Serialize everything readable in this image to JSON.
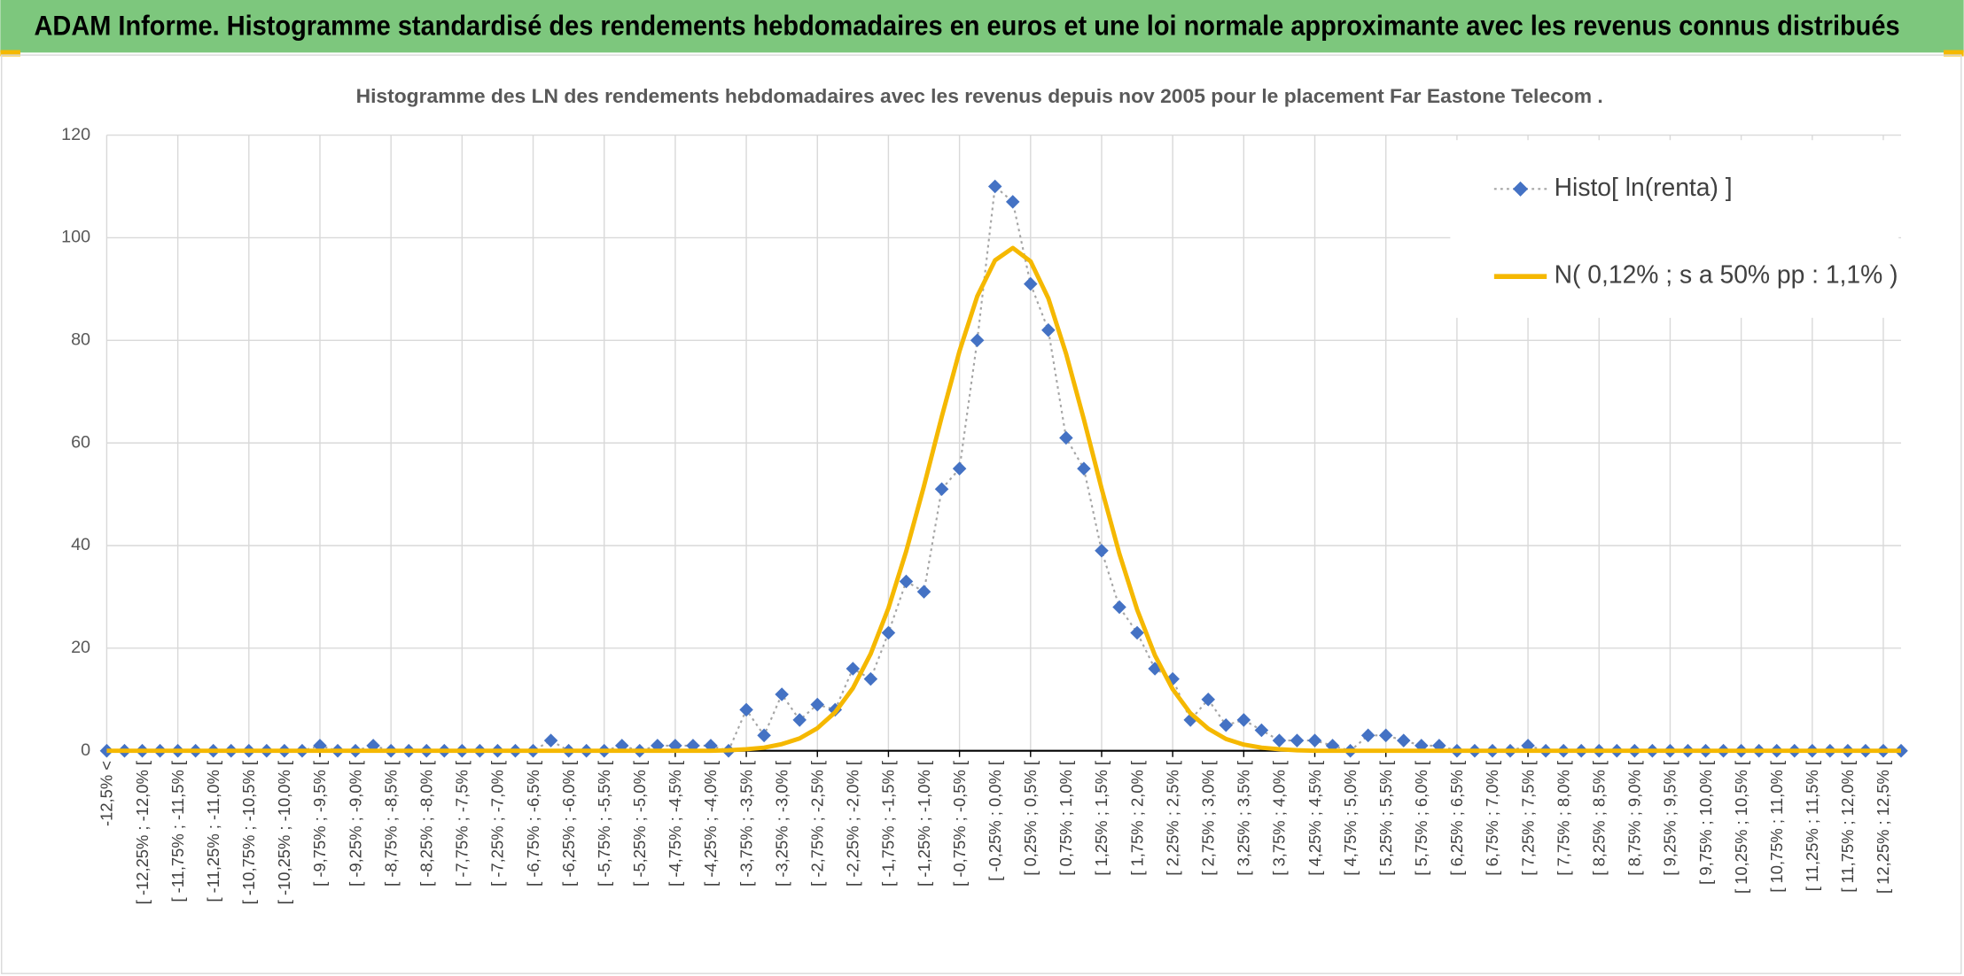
{
  "chart_data": {
    "type": "line",
    "title": "ADAM Informe. Histogramme standardisé des rendements hebdomadaires en euros et une loi normale approximante avec les revenus connus distribués",
    "subtitle": "Histogramme des LN des rendements hebdomadaires avec les revenus depuis nov 2005 pour le placement Far Eastone Telecom .",
    "categories": [
      "-12,5% <",
      null,
      "[ -12,25% ; -12,0% [",
      null,
      "[ -11,75% ; -11,5% [",
      null,
      "[ -11,25% ; -11,0% [",
      null,
      "[ -10,75% ; -10,5% [",
      null,
      "[ -10,25% ; -10,0% [",
      null,
      "[ -9,75% ; -9,5% [",
      null,
      "[ -9,25% ; -9,0% [",
      null,
      "[ -8,75% ; -8,5% [",
      null,
      "[ -8,25% ; -8,0% [",
      null,
      "[ -7,75% ; -7,5% [",
      null,
      "[ -7,25% ; -7,0% [",
      null,
      "[ -6,75% ; -6,5% [",
      null,
      "[ -6,25% ; -6,0% [",
      null,
      "[ -5,75% ; -5,5% [",
      null,
      "[ -5,25% ; -5,0% [",
      null,
      "[ -4,75% ; -4,5% [",
      null,
      "[ -4,25% ; -4,0% [",
      null,
      "[ -3,75% ; -3,5% [",
      null,
      "[ -3,25% ; -3,0% [",
      null,
      "[ -2,75% ; -2,5% [",
      null,
      "[ -2,25% ; -2,0% [",
      null,
      "[ -1,75% ; -1,5% [",
      null,
      "[ -1,25% ; -1,0% [",
      null,
      "[ -0,75% ; -0,5% [",
      null,
      "[ -0,25% ; 0,0% [",
      null,
      "[ 0,25% ; 0,5% [",
      null,
      "[ 0,75% ; 1,0% [",
      null,
      "[ 1,25% ; 1,5% [",
      null,
      "[ 1,75% ; 2,0% [",
      null,
      "[ 2,25% ; 2,5% [",
      null,
      "[ 2,75% ; 3,0% [",
      null,
      "[ 3,25% ; 3,5% [",
      null,
      "[ 3,75% ; 4,0% [",
      null,
      "[ 4,25% ; 4,5% [",
      null,
      "[ 4,75% ; 5,0% [",
      null,
      "[ 5,25% ; 5,5% [",
      null,
      "[ 5,75% ; 6,0% [",
      null,
      "[ 6,25% ; 6,5% [",
      null,
      "[ 6,75% ; 7,0% [",
      null,
      "[ 7,25% ; 7,5% [",
      null,
      "[ 7,75% ; 8,0% [",
      null,
      "[ 8,25% ; 8,5% [",
      null,
      "[ 8,75% ; 9,0% [",
      null,
      "[ 9,25% ; 9,5% [",
      null,
      "[ 9,75% ; 10,0% [",
      null,
      "[ 10,25% ; 10,5% [",
      null,
      "[ 10,75% ; 11,0% [",
      null,
      "[ 11,25% ; 11,5% [",
      null,
      "[ 11,75% ; 12,0% [",
      null,
      "[ 12,25% ; 12,5% [",
      null
    ],
    "series": [
      {
        "name": "Histo[ ln(renta) ]",
        "color": "#4472c4",
        "line_color": "#a5a5a5",
        "marker": "diamond",
        "values": [
          0,
          0,
          0,
          0,
          0,
          0,
          0,
          0,
          0,
          0,
          0,
          0,
          1,
          0,
          0,
          1,
          0,
          0,
          0,
          0,
          0,
          0,
          0,
          0,
          0,
          2,
          0,
          0,
          0,
          1,
          0,
          1,
          1,
          1,
          1,
          0,
          8,
          3,
          11,
          6,
          9,
          8,
          16,
          14,
          23,
          33,
          31,
          51,
          55,
          80,
          110,
          107,
          91,
          82,
          61,
          55,
          39,
          28,
          23,
          16,
          14,
          6,
          10,
          5,
          6,
          4,
          2,
          2,
          2,
          1,
          0,
          3,
          3,
          2,
          1,
          1,
          0,
          0,
          0,
          0,
          1,
          0,
          0,
          0,
          0,
          0,
          0,
          0,
          0,
          0,
          0,
          0,
          0,
          0,
          0,
          0,
          0,
          0,
          0,
          0,
          0,
          0
        ]
      },
      {
        "name": "N( 0,12% ; s a 50% pp : 1,1% )",
        "color": "#f5b800",
        "values": [
          0,
          0,
          0,
          0,
          0,
          0,
          0,
          0,
          0,
          0,
          0,
          0,
          0,
          0,
          0,
          0,
          0,
          0,
          0,
          0,
          0,
          0,
          0,
          0,
          0,
          0,
          0,
          0,
          0,
          0,
          0,
          0,
          0,
          0,
          0,
          0.1,
          0.3,
          0.6,
          1.3,
          2.4,
          4.4,
          7.5,
          12.2,
          18.9,
          27.8,
          38.9,
          51.6,
          65.1,
          77.9,
          88.6,
          95.6,
          98,
          95.4,
          88.2,
          77.4,
          64.6,
          51.1,
          38.4,
          27.5,
          18.6,
          12.0,
          7.3,
          4.3,
          2.3,
          1.2,
          0.6,
          0.3,
          0.1,
          0,
          0,
          0,
          0,
          0,
          0,
          0,
          0,
          0,
          0,
          0,
          0,
          0,
          0,
          0,
          0,
          0,
          0,
          0,
          0,
          0,
          0,
          0,
          0,
          0,
          0,
          0,
          0,
          0,
          0,
          0,
          0,
          0,
          0
        ]
      }
    ],
    "ylim": [
      0,
      120
    ],
    "yticks": [
      0,
      20,
      40,
      60,
      80,
      100,
      120
    ],
    "grid": true,
    "legend": "top-right"
  }
}
